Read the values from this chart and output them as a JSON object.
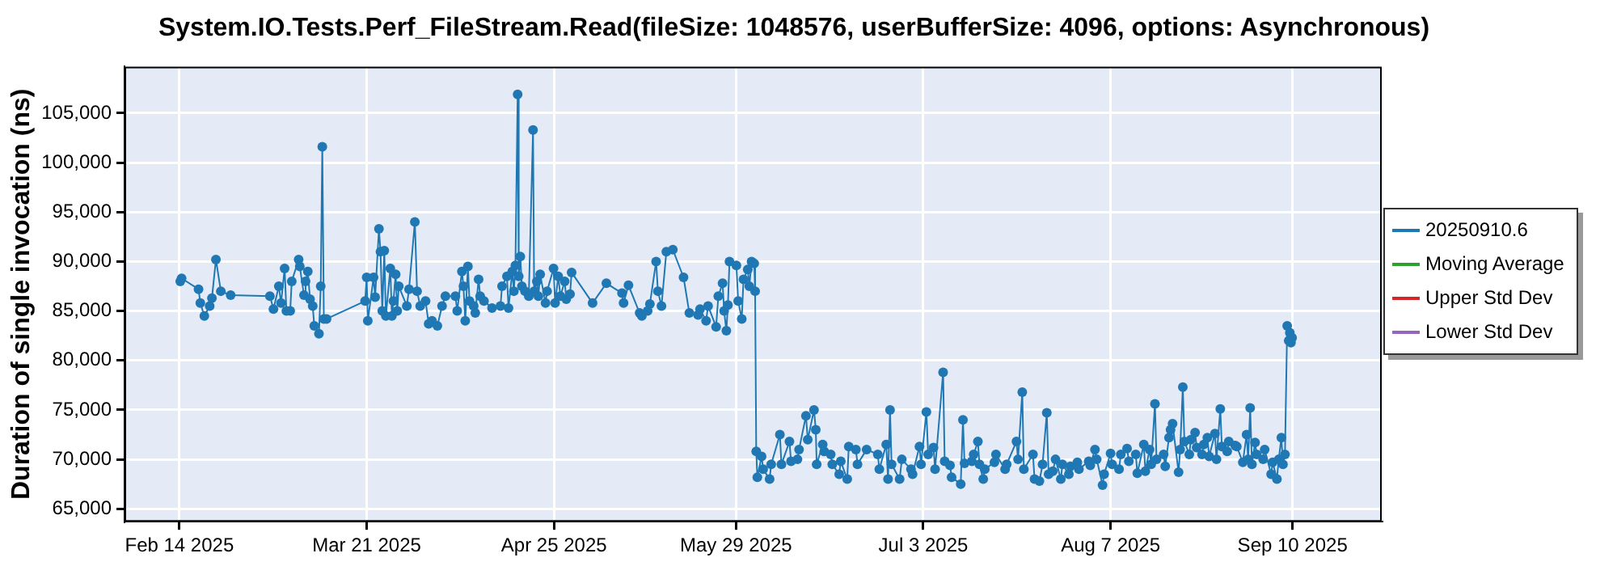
{
  "chart_data": {
    "type": "line",
    "title": "System.IO.Tests.Perf_FileStream.Read(fileSize: 1048576, userBufferSize: 4096, options: Asynchronous)",
    "ylabel": "Duration of single invocation (ns)",
    "x": [
      "2025-02-14T04:00",
      "2025-02-14T10:00",
      "2025-02-17T14:00",
      "2025-02-17T22:00",
      "2025-02-18T16:00",
      "2025-02-19T16:00",
      "2025-02-20T02:00",
      "2025-02-20T20:00",
      "2025-02-21T18:00",
      "2025-02-23T14:00",
      "2025-03-02T22:00",
      "2025-03-03T14:00",
      "2025-03-04T14:00",
      "2025-03-05T00:00",
      "2025-03-05T16:00",
      "2025-03-06T00:00",
      "2025-03-06T17:00",
      "2025-03-07T00:00",
      "2025-03-08T07:00",
      "2025-03-08T12:00",
      "2025-03-09T07:00",
      "2025-03-09T14:00",
      "2025-03-10T00:00",
      "2025-03-10T10:00",
      "2025-03-10T22:00",
      "2025-03-11T05:00",
      "2025-03-12T02:00",
      "2025-03-12T10:00",
      "2025-03-12T17:00",
      "2025-03-13T00:00",
      "2025-03-13T12:00",
      "2025-03-20T17:00",
      "2025-03-21T00:00",
      "2025-03-21T05:00",
      "2025-03-22T07:00",
      "2025-03-22T14:00",
      "2025-03-23T07:00",
      "2025-03-23T14:00",
      "2025-03-23T22:00",
      "2025-03-24T07:00",
      "2025-03-24T14:00",
      "2025-03-25T10:00",
      "2025-03-25T17:00",
      "2025-03-26T00:00",
      "2025-03-26T10:00",
      "2025-03-26T17:00",
      "2025-03-27T00:00",
      "2025-03-28T12:00",
      "2025-03-28T22:00",
      "2025-03-30T00:00",
      "2025-03-30T10:00",
      "2025-03-31T00:00",
      "2025-04-01T00:00",
      "2025-04-01T14:00",
      "2025-04-02T05:00",
      "2025-04-03T05:00",
      "2025-04-04T02:00",
      "2025-04-04T17:00",
      "2025-04-06T14:00",
      "2025-04-06T22:00",
      "2025-04-07T19:00",
      "2025-04-08T02:00",
      "2025-04-08T10:00",
      "2025-04-08T22:00",
      "2025-04-09T05:00",
      "2025-04-10T00:00",
      "2025-04-10T07:00",
      "2025-04-10T22:00",
      "2025-04-11T05:00",
      "2025-04-11T22:00",
      "2025-04-13T10:00",
      "2025-04-15T00:00",
      "2025-04-15T07:00",
      "2025-04-16T05:00",
      "2025-04-16T12:00",
      "2025-04-17T05:00",
      "2025-04-17T12:00",
      "2025-04-17T19:00",
      "2025-04-18T05:00",
      "2025-04-18T10:00",
      "2025-04-18T17:00",
      "2025-04-19T00:00",
      "2025-04-19T14:00",
      "2025-04-20T07:00",
      "2025-04-21T02:00",
      "2025-04-21T07:00",
      "2025-04-21T19:00",
      "2025-04-22T02:00",
      "2025-04-22T10:00",
      "2025-04-23T10:00",
      "2025-04-23T17:00",
      "2025-04-24T22:00",
      "2025-04-25T05:00",
      "2025-04-25T19:00",
      "2025-04-26T05:00",
      "2025-04-27T00:00",
      "2025-04-27T07:00",
      "2025-04-28T00:00",
      "2025-04-28T07:00",
      "2025-05-02T05:00",
      "2025-05-04T19:00",
      "2025-05-07T17:00",
      "2025-05-08T00:00",
      "2025-05-08T22:00",
      "2025-05-11T00:00",
      "2025-05-11T10:00",
      "2025-05-12T12:00",
      "2025-05-12T22:00",
      "2025-05-14T02:00",
      "2025-05-14T10:00",
      "2025-05-15T02:00",
      "2025-05-16T00:00",
      "2025-05-17T05:00",
      "2025-05-19T05:00",
      "2025-05-20T07:00",
      "2025-05-21T22:00",
      "2025-05-22T07:00",
      "2025-05-23T10:00",
      "2025-05-23T19:00",
      "2025-05-25T07:00",
      "2025-05-25T17:00",
      "2025-05-26T12:00",
      "2025-05-26T19:00",
      "2025-05-27T05:00",
      "2025-05-27T12:00",
      "2025-05-27T19:00",
      "2025-05-29T02:00",
      "2025-05-29T10:00",
      "2025-05-30T02:00",
      "2025-05-30T10:00",
      "2025-05-31T05:00",
      "2025-05-31T12:00",
      "2025-05-31T22:00",
      "2025-06-01T10:00",
      "2025-06-01T14:00",
      "2025-06-01T19:00",
      "2025-06-02T00:00",
      "2025-06-02T19:00",
      "2025-06-03T02:00",
      "2025-06-04T07:00",
      "2025-06-04T14:00",
      "2025-06-06T05:00",
      "2025-06-06T12:00",
      "2025-06-08T00:00",
      "2025-06-08T07:00",
      "2025-06-09T12:00",
      "2025-06-09T19:00",
      "2025-06-11T02:00",
      "2025-06-11T10:00",
      "2025-06-12T14:00",
      "2025-06-12T22:00",
      "2025-06-13T02:00",
      "2025-06-14T05:00",
      "2025-06-14T12:00",
      "2025-06-15T17:00",
      "2025-06-16T00:00",
      "2025-06-17T07:00",
      "2025-06-17T14:00",
      "2025-06-18T19:00",
      "2025-06-19T02:00",
      "2025-06-20T10:00",
      "2025-06-20T17:00",
      "2025-06-22T10:00",
      "2025-06-24T12:00",
      "2025-06-24T19:00",
      "2025-06-26T02:00",
      "2025-06-26T10:00",
      "2025-06-26T19:00",
      "2025-06-27T02:00",
      "2025-06-28T14:00",
      "2025-06-29T00:00",
      "2025-06-30T17:00",
      "2025-07-01T00:00",
      "2025-07-02T07:00",
      "2025-07-02T14:00",
      "2025-07-03T14:00",
      "2025-07-03T22:00",
      "2025-07-04T22:00",
      "2025-07-05T05:00",
      "2025-07-06T17:00",
      "2025-07-07T00:00",
      "2025-07-08T00:00",
      "2025-07-08T07:00",
      "2025-07-10T00:00",
      "2025-07-10T10:00",
      "2025-07-10T17:00",
      "2025-07-12T02:00",
      "2025-07-12T10:00",
      "2025-07-13T05:00",
      "2025-07-13T12:00",
      "2025-07-14T05:00",
      "2025-07-14T12:00",
      "2025-07-16T07:00",
      "2025-07-16T14:00",
      "2025-07-18T07:00",
      "2025-07-18T14:00",
      "2025-07-20T10:00",
      "2025-07-20T17:00",
      "2025-07-21T12:00",
      "2025-07-21T19:00",
      "2025-07-23T12:00",
      "2025-07-23T19:00",
      "2025-07-24T17:00",
      "2025-07-25T07:00",
      "2025-07-26T02:00",
      "2025-07-26T10:00",
      "2025-07-27T05:00",
      "2025-07-27T17:00",
      "2025-07-28T17:00",
      "2025-07-29T00:00",
      "2025-07-30T05:00",
      "2025-07-30T12:00",
      "2025-07-31T19:00",
      "2025-08-01T02:00",
      "2025-08-02T22:00",
      "2025-08-03T05:00",
      "2025-08-04T02:00",
      "2025-08-04T10:00",
      "2025-08-05T12:00",
      "2025-08-05T19:00",
      "2025-08-07T00:00",
      "2025-08-07T07:00",
      "2025-08-08T14:00",
      "2025-08-08T22:00",
      "2025-08-10T02:00",
      "2025-08-10T10:00",
      "2025-08-11T17:00",
      "2025-08-12T00:00",
      "2025-08-13T05:00",
      "2025-08-13T12:00",
      "2025-08-14T07:00",
      "2025-08-14T14:00",
      "2025-08-15T07:00",
      "2025-08-15T14:00",
      "2025-08-16T22:00",
      "2025-08-17T05:00",
      "2025-08-17T22:00",
      "2025-08-18T05:00",
      "2025-08-18T14:00",
      "2025-08-19T17:00",
      "2025-08-20T00:00",
      "2025-08-20T12:00",
      "2025-08-20T19:00",
      "2025-08-21T17:00",
      "2025-08-22T00:00",
      "2025-08-22T19:00",
      "2025-08-23T02:00",
      "2025-08-24T02:00",
      "2025-08-24T10:00",
      "2025-08-25T02:00",
      "2025-08-25T10:00",
      "2025-08-26T12:00",
      "2025-08-26T19:00",
      "2025-08-27T12:00",
      "2025-08-27T19:00",
      "2025-08-28T19:00",
      "2025-08-29T02:00",
      "2025-08-30T07:00",
      "2025-08-30T14:00",
      "2025-08-31T17:00",
      "2025-09-01T10:00",
      "2025-09-01T17:00",
      "2025-09-02T02:00",
      "2025-09-02T10:00",
      "2025-09-03T00:00",
      "2025-09-03T07:00",
      "2025-09-04T12:00",
      "2025-09-04T19:00",
      "2025-09-06T00:00",
      "2025-09-06T07:00",
      "2025-09-07T02:00",
      "2025-09-07T10:00",
      "2025-09-07T22:00",
      "2025-09-08T05:00",
      "2025-09-08T14:00",
      "2025-09-09T00:00",
      "2025-09-09T07:00",
      "2025-09-09T12:00",
      "2025-09-09T17:00",
      "2025-09-09T22:00"
    ],
    "series": [
      {
        "name": "20250910.6",
        "color": "#1f77b4",
        "values": [
          88000,
          88300,
          87200,
          85800,
          84500,
          85500,
          86300,
          90200,
          87000,
          86600,
          86500,
          85200,
          87500,
          85800,
          89300,
          85000,
          85000,
          88000,
          90200,
          89500,
          86600,
          88000,
          89000,
          86200,
          85500,
          83500,
          82700,
          87500,
          101600,
          84200,
          84200,
          86000,
          88400,
          84000,
          88400,
          86400,
          93300,
          91000,
          85000,
          91100,
          84500,
          89300,
          84500,
          86000,
          88700,
          85000,
          87500,
          85500,
          87200,
          94000,
          87000,
          85500,
          86000,
          83700,
          84000,
          83500,
          85500,
          86500,
          86500,
          85000,
          89000,
          87500,
          84000,
          89500,
          86000,
          85500,
          84800,
          88200,
          86500,
          86000,
          85300,
          85500,
          87500,
          88500,
          85300,
          89000,
          87000,
          89600,
          106900,
          88500,
          90500,
          87500,
          87000,
          86500,
          103300,
          87000,
          88000,
          86500,
          88700,
          85800,
          87000,
          89300,
          85800,
          88500,
          86500,
          88000,
          86200,
          86700,
          88900,
          85800,
          87800,
          86800,
          85800,
          87600,
          84800,
          84500,
          85000,
          85700,
          90000,
          87000,
          85500,
          91000,
          91200,
          88400,
          84800,
          84600,
          85200,
          84000,
          85500,
          83400,
          86500,
          87800,
          85000,
          83000,
          85600,
          90000,
          89600,
          86000,
          84200,
          88200,
          89200,
          87500,
          90000,
          89800,
          87000,
          70800,
          68200,
          70300,
          69000,
          68000,
          69500,
          72500,
          69500,
          71800,
          69800,
          70000,
          71000,
          74400,
          72000,
          75000,
          73000,
          69500,
          71500,
          70800,
          70500,
          69500,
          68500,
          69800,
          68000,
          71300,
          71000,
          69500,
          71000,
          70500,
          69000,
          71500,
          68000,
          75000,
          69500,
          68000,
          70000,
          69000,
          68500,
          71300,
          69500,
          74800,
          70500,
          71200,
          69000,
          78800,
          69800,
          69400,
          68200,
          67500,
          74000,
          69600,
          69800,
          70500,
          71800,
          69500,
          68000,
          69000,
          69700,
          70500,
          69000,
          69500,
          71800,
          70000,
          76800,
          69000,
          70500,
          68000,
          67800,
          69500,
          74700,
          68500,
          68800,
          70000,
          68000,
          69500,
          68500,
          69300,
          69700,
          69000,
          69800,
          69400,
          71000,
          70000,
          67400,
          68500,
          70600,
          69500,
          69000,
          70500,
          71100,
          69800,
          70500,
          68600,
          71500,
          68800,
          71000,
          69500,
          75600,
          70000,
          70500,
          69300,
          72200,
          73000,
          73600,
          68700,
          71000,
          77300,
          71800,
          70500,
          72000,
          72700,
          71200,
          70500,
          71500,
          72200,
          70300,
          72600,
          70000,
          75100,
          71300,
          70800,
          71800,
          71400,
          71300,
          69700,
          72500,
          70000,
          75200,
          69500,
          71700,
          70500,
          70000,
          71000,
          68500,
          69700,
          68000,
          70000,
          72200,
          69500,
          70500,
          83500,
          82000,
          82800,
          81800,
          82300
        ]
      },
      {
        "name": "Moving Average",
        "color": "#2ca02c",
        "values": [
          null,
          null,
          null,
          null,
          null,
          null,
          null,
          null,
          null,
          null,
          null,
          null,
          null,
          null,
          null,
          null,
          null,
          null,
          null,
          null,
          null,
          null,
          null,
          null,
          null,
          null,
          null,
          null,
          null,
          null,
          null,
          null,
          null,
          null,
          null,
          null,
          null,
          null,
          null,
          null,
          null,
          null,
          null,
          null,
          null,
          null,
          null,
          null,
          null,
          null,
          null,
          null,
          null,
          null,
          null,
          null,
          null,
          null,
          null,
          null,
          null,
          null,
          null,
          null,
          null,
          null,
          null,
          null,
          null,
          null,
          null,
          null,
          null,
          null,
          null,
          null,
          null,
          null,
          null,
          null,
          null,
          null,
          null,
          null,
          null,
          null,
          null,
          null,
          null,
          null,
          null,
          null,
          null,
          null,
          null,
          null,
          null,
          null,
          null,
          null,
          null,
          null,
          null,
          null,
          null,
          null,
          null,
          null,
          null,
          null,
          null,
          null,
          null,
          null,
          null,
          null,
          null,
          null,
          null,
          null,
          null,
          null,
          null,
          null,
          null,
          null,
          null,
          null,
          null,
          null,
          null,
          null,
          null,
          null,
          null,
          null,
          null,
          null,
          null,
          null,
          null,
          null,
          null,
          null,
          null,
          null,
          null,
          null,
          null,
          null,
          null,
          null,
          null,
          null,
          null,
          null,
          null,
          null,
          null,
          null,
          null,
          null,
          null,
          null,
          null,
          null,
          null,
          null,
          null,
          null,
          null,
          null,
          null,
          null,
          null,
          null,
          null,
          null,
          null,
          null,
          null,
          null,
          null,
          null,
          null,
          null,
          null,
          null,
          null,
          null,
          null,
          null,
          null,
          null,
          null,
          null,
          null,
          null,
          null,
          null,
          null,
          null,
          null,
          null,
          null,
          null,
          null,
          null,
          null,
          null,
          null,
          null,
          null,
          null,
          null,
          null,
          null,
          null,
          null,
          null,
          null,
          null,
          null,
          null,
          null,
          null,
          null,
          null,
          null,
          null,
          null,
          null,
          null,
          null,
          null,
          null,
          null,
          null,
          null,
          null,
          null,
          null,
          null,
          null,
          null,
          null,
          null,
          null,
          null,
          null,
          null,
          null,
          null,
          null,
          null,
          null,
          null,
          null,
          null,
          null,
          null,
          null,
          null,
          null,
          null,
          null,
          null,
          null,
          null,
          null,
          null,
          null,
          null,
          null,
          null,
          null,
          null,
          null,
          null,
          null
        ]
      },
      {
        "name": "Upper Std Dev",
        "color": "#d62728",
        "values": [
          null,
          null,
          null,
          null,
          null,
          null,
          null,
          null,
          null,
          null,
          null,
          null,
          null,
          null,
          null,
          null,
          null,
          null,
          null,
          null,
          null,
          null,
          null,
          null,
          null,
          null,
          null,
          null,
          null,
          null,
          null,
          null,
          null,
          null,
          null,
          null,
          null,
          null,
          null,
          null,
          null,
          null,
          null,
          null,
          null,
          null,
          null,
          null,
          null,
          null,
          null,
          null,
          null,
          null,
          null,
          null,
          null,
          null,
          null,
          null,
          null,
          null,
          null,
          null,
          null,
          null,
          null,
          null,
          null,
          null,
          null,
          null,
          null,
          null,
          null,
          null,
          null,
          null,
          null,
          null,
          null,
          null,
          null,
          null,
          null,
          null,
          null,
          null,
          null,
          null,
          null,
          null,
          null,
          null,
          null,
          null,
          null,
          null,
          null,
          null,
          null,
          null,
          null,
          null,
          null,
          null,
          null,
          null,
          null,
          null,
          null,
          null,
          null,
          null,
          null,
          null,
          null,
          null,
          null,
          null,
          null,
          null,
          null,
          null,
          null,
          null,
          null,
          null,
          null,
          null,
          null,
          null,
          null,
          null,
          null,
          null,
          null,
          null,
          null,
          null,
          null,
          null,
          null,
          null,
          null,
          null,
          null,
          null,
          null,
          null,
          null,
          null,
          null,
          null,
          null,
          null,
          null,
          null,
          null,
          null,
          null,
          null,
          null,
          null,
          null,
          null,
          null,
          null,
          null,
          null,
          null,
          null,
          null,
          null,
          null,
          null,
          null,
          null,
          null,
          null,
          null,
          null,
          null,
          null,
          null,
          null,
          null,
          null,
          null,
          null,
          null,
          null,
          null,
          null,
          null,
          null,
          null,
          null,
          null,
          null,
          null,
          null,
          null,
          null,
          null,
          null,
          null,
          null,
          null,
          null,
          null,
          null,
          null,
          null,
          null,
          null,
          null,
          null,
          null,
          null,
          null,
          null,
          null,
          null,
          null,
          null,
          null,
          null,
          null,
          null,
          null,
          null,
          null,
          null,
          null,
          null,
          null,
          null,
          null,
          null,
          null,
          null,
          null,
          null,
          null,
          null,
          null,
          null,
          null,
          null,
          null,
          null,
          null,
          null,
          null,
          null,
          null,
          null,
          null,
          null,
          null,
          null,
          null,
          null,
          null,
          null,
          null,
          null,
          null,
          null,
          null,
          null,
          null,
          null,
          null,
          null,
          null,
          null,
          null,
          null
        ]
      },
      {
        "name": "Lower Std Dev",
        "color": "#9467bd",
        "values": [
          null,
          null,
          null,
          null,
          null,
          null,
          null,
          null,
          null,
          null,
          null,
          null,
          null,
          null,
          null,
          null,
          null,
          null,
          null,
          null,
          null,
          null,
          null,
          null,
          null,
          null,
          null,
          null,
          null,
          null,
          null,
          null,
          null,
          null,
          null,
          null,
          null,
          null,
          null,
          null,
          null,
          null,
          null,
          null,
          null,
          null,
          null,
          null,
          null,
          null,
          null,
          null,
          null,
          null,
          null,
          null,
          null,
          null,
          null,
          null,
          null,
          null,
          null,
          null,
          null,
          null,
          null,
          null,
          null,
          null,
          null,
          null,
          null,
          null,
          null,
          null,
          null,
          null,
          null,
          null,
          null,
          null,
          null,
          null,
          null,
          null,
          null,
          null,
          null,
          null,
          null,
          null,
          null,
          null,
          null,
          null,
          null,
          null,
          null,
          null,
          null,
          null,
          null,
          null,
          null,
          null,
          null,
          null,
          null,
          null,
          null,
          null,
          null,
          null,
          null,
          null,
          null,
          null,
          null,
          null,
          null,
          null,
          null,
          null,
          null,
          null,
          null,
          null,
          null,
          null,
          null,
          null,
          null,
          null,
          null,
          null,
          null,
          null,
          null,
          null,
          null,
          null,
          null,
          null,
          null,
          null,
          null,
          null,
          null,
          null,
          null,
          null,
          null,
          null,
          null,
          null,
          null,
          null,
          null,
          null,
          null,
          null,
          null,
          null,
          null,
          null,
          null,
          null,
          null,
          null,
          null,
          null,
          null,
          null,
          null,
          null,
          null,
          null,
          null,
          null,
          null,
          null,
          null,
          null,
          null,
          null,
          null,
          null,
          null,
          null,
          null,
          null,
          null,
          null,
          null,
          null,
          null,
          null,
          null,
          null,
          null,
          null,
          null,
          null,
          null,
          null,
          null,
          null,
          null,
          null,
          null,
          null,
          null,
          null,
          null,
          null,
          null,
          null,
          null,
          null,
          null,
          null,
          null,
          null,
          null,
          null,
          null,
          null,
          null,
          null,
          null,
          null,
          null,
          null,
          null,
          null,
          null,
          null,
          null,
          null,
          null,
          null,
          null,
          null,
          null,
          null,
          null,
          null,
          null,
          null,
          null,
          null,
          null,
          null,
          null,
          null,
          null,
          null,
          null,
          null,
          null,
          null,
          null,
          null,
          null,
          null,
          null,
          null,
          null,
          null,
          null,
          null,
          null,
          null,
          null,
          null,
          null,
          null,
          null,
          null
        ]
      }
    ],
    "xlim": [
      "2025-02-03T18:00",
      "2025-09-26T16:00"
    ],
    "xticks": [
      {
        "value": "2025-02-14",
        "label": "Feb 14 2025"
      },
      {
        "value": "2025-03-21",
        "label": "Mar 21 2025"
      },
      {
        "value": "2025-04-25",
        "label": "Apr 25 2025"
      },
      {
        "value": "2025-05-29",
        "label": "May 29 2025"
      },
      {
        "value": "2025-07-03",
        "label": "Jul 3 2025"
      },
      {
        "value": "2025-08-07",
        "label": "Aug 7 2025"
      },
      {
        "value": "2025-09-10",
        "label": "Sep 10 2025"
      }
    ],
    "ylim": [
      63700,
      109700
    ],
    "yticks": [
      {
        "value": 65000,
        "label": "65,000"
      },
      {
        "value": 70000,
        "label": "70,000"
      },
      {
        "value": 75000,
        "label": "75,000"
      },
      {
        "value": 80000,
        "label": "80,000"
      },
      {
        "value": 85000,
        "label": "85,000"
      },
      {
        "value": 90000,
        "label": "90,000"
      },
      {
        "value": 95000,
        "label": "95,000"
      },
      {
        "value": 100000,
        "label": "100,000"
      },
      {
        "value": 105000,
        "label": "105,000"
      }
    ],
    "grid": true,
    "legend": "right",
    "marker": "circle",
    "line_style": "solid"
  }
}
